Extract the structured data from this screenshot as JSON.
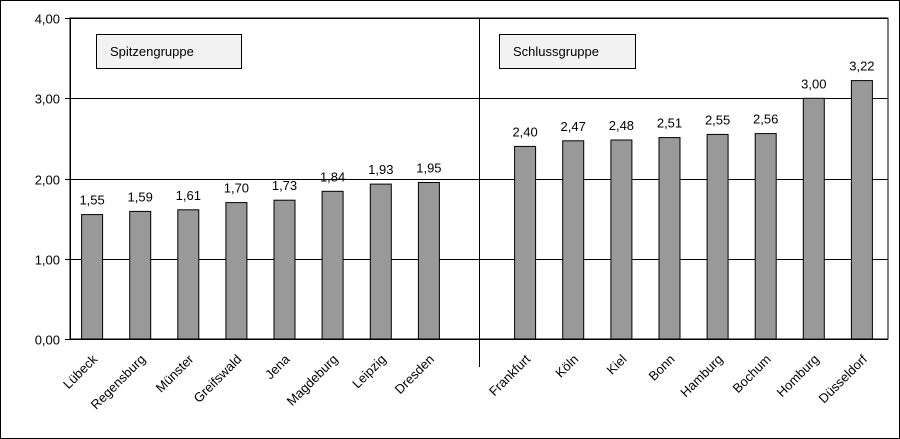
{
  "chart_data": {
    "type": "bar",
    "categories": [
      "Lübeck",
      "Regensburg",
      "Münster",
      "Greifswald",
      "Jena",
      "Magdeburg",
      "Leipzig",
      "Dresden",
      "Frankfurt",
      "Köln",
      "Kiel",
      "Bonn",
      "Hamburg",
      "Bochum",
      "Homburg",
      "Düsseldorf"
    ],
    "values": [
      1.55,
      1.59,
      1.61,
      1.7,
      1.73,
      1.84,
      1.93,
      1.95,
      2.4,
      2.47,
      2.48,
      2.51,
      2.55,
      2.56,
      3.0,
      3.22
    ],
    "value_labels": [
      "1,55",
      "1,59",
      "1,61",
      "1,70",
      "1,73",
      "1,84",
      "1,93",
      "1,95",
      "2,40",
      "2,47",
      "2,48",
      "2,51",
      "2,55",
      "2,56",
      "3,00",
      "3,22"
    ],
    "ylim": [
      0,
      4
    ],
    "yticks": [
      "0,00",
      "1,00",
      "2,00",
      "3,00",
      "4,00"
    ],
    "ytick_values": [
      0,
      1,
      2,
      3,
      4
    ],
    "grid": true,
    "title": "",
    "xlabel": "",
    "ylabel": "",
    "groups": [
      {
        "label": "Spitzengruppe",
        "count": 8
      },
      {
        "label": "Schlussgruppe",
        "count": 8
      }
    ],
    "colors": {
      "bar": "#999999",
      "bar_stroke": "#000000",
      "grid": "#000000"
    }
  }
}
